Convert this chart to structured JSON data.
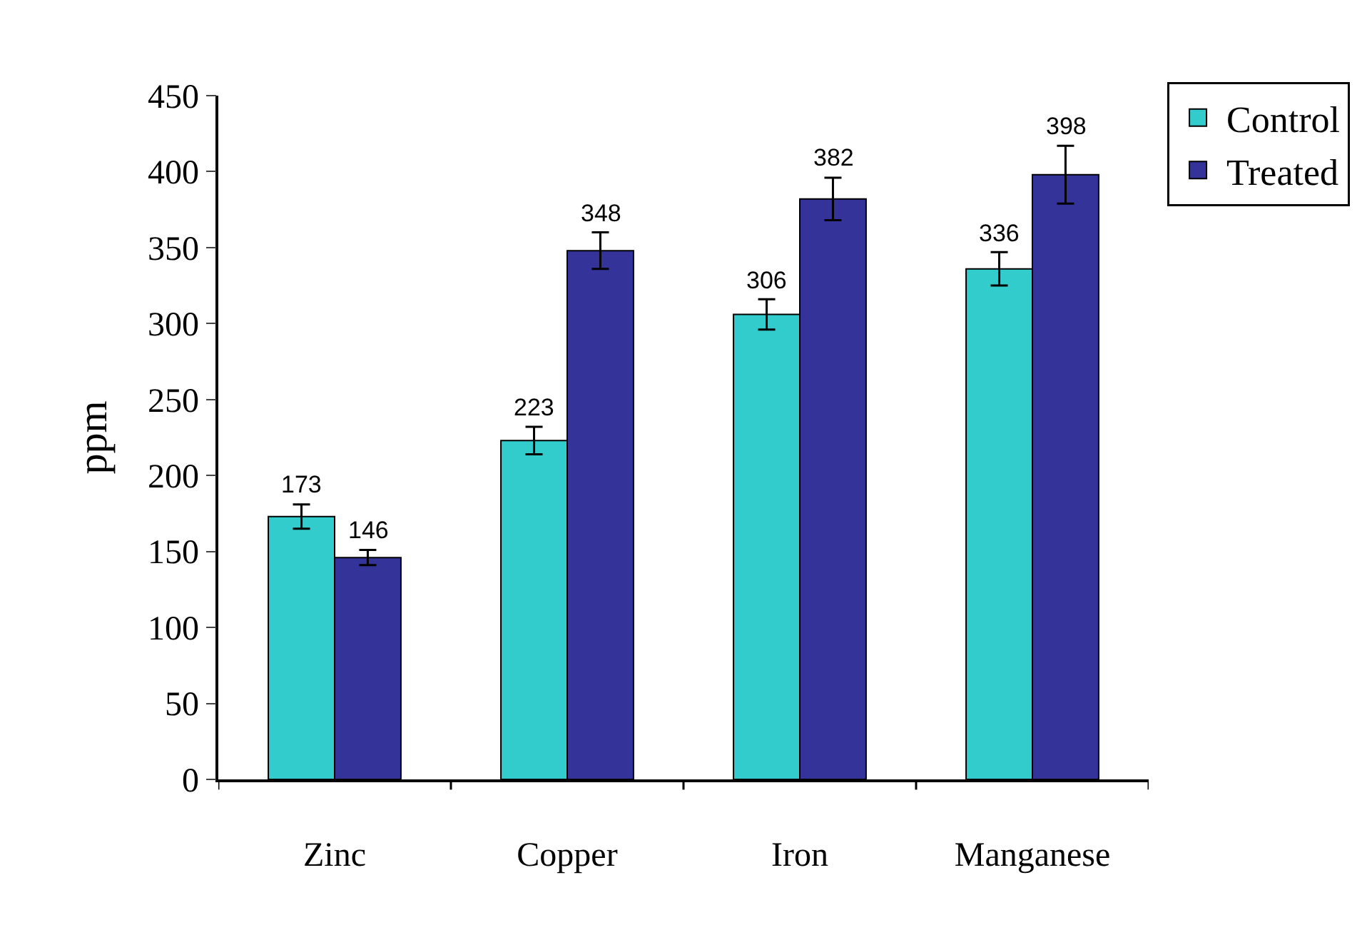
{
  "chart_data": {
    "type": "bar",
    "ylabel": "ppm",
    "categories": [
      "Zinc",
      "Copper",
      "Iron",
      "Manganese"
    ],
    "series": [
      {
        "name": "Control",
        "color": "#33cccc",
        "values": [
          173,
          223,
          306,
          336
        ],
        "errors": [
          8,
          9,
          10,
          11
        ]
      },
      {
        "name": "Treated",
        "color": "#333399",
        "values": [
          146,
          348,
          382,
          398
        ],
        "errors": [
          5,
          12,
          14,
          19
        ]
      }
    ],
    "ylim": [
      0,
      450
    ],
    "yticks": [
      0,
      50,
      100,
      150,
      200,
      250,
      300,
      350,
      400,
      450
    ],
    "data_labels": true,
    "legend": "top right"
  }
}
